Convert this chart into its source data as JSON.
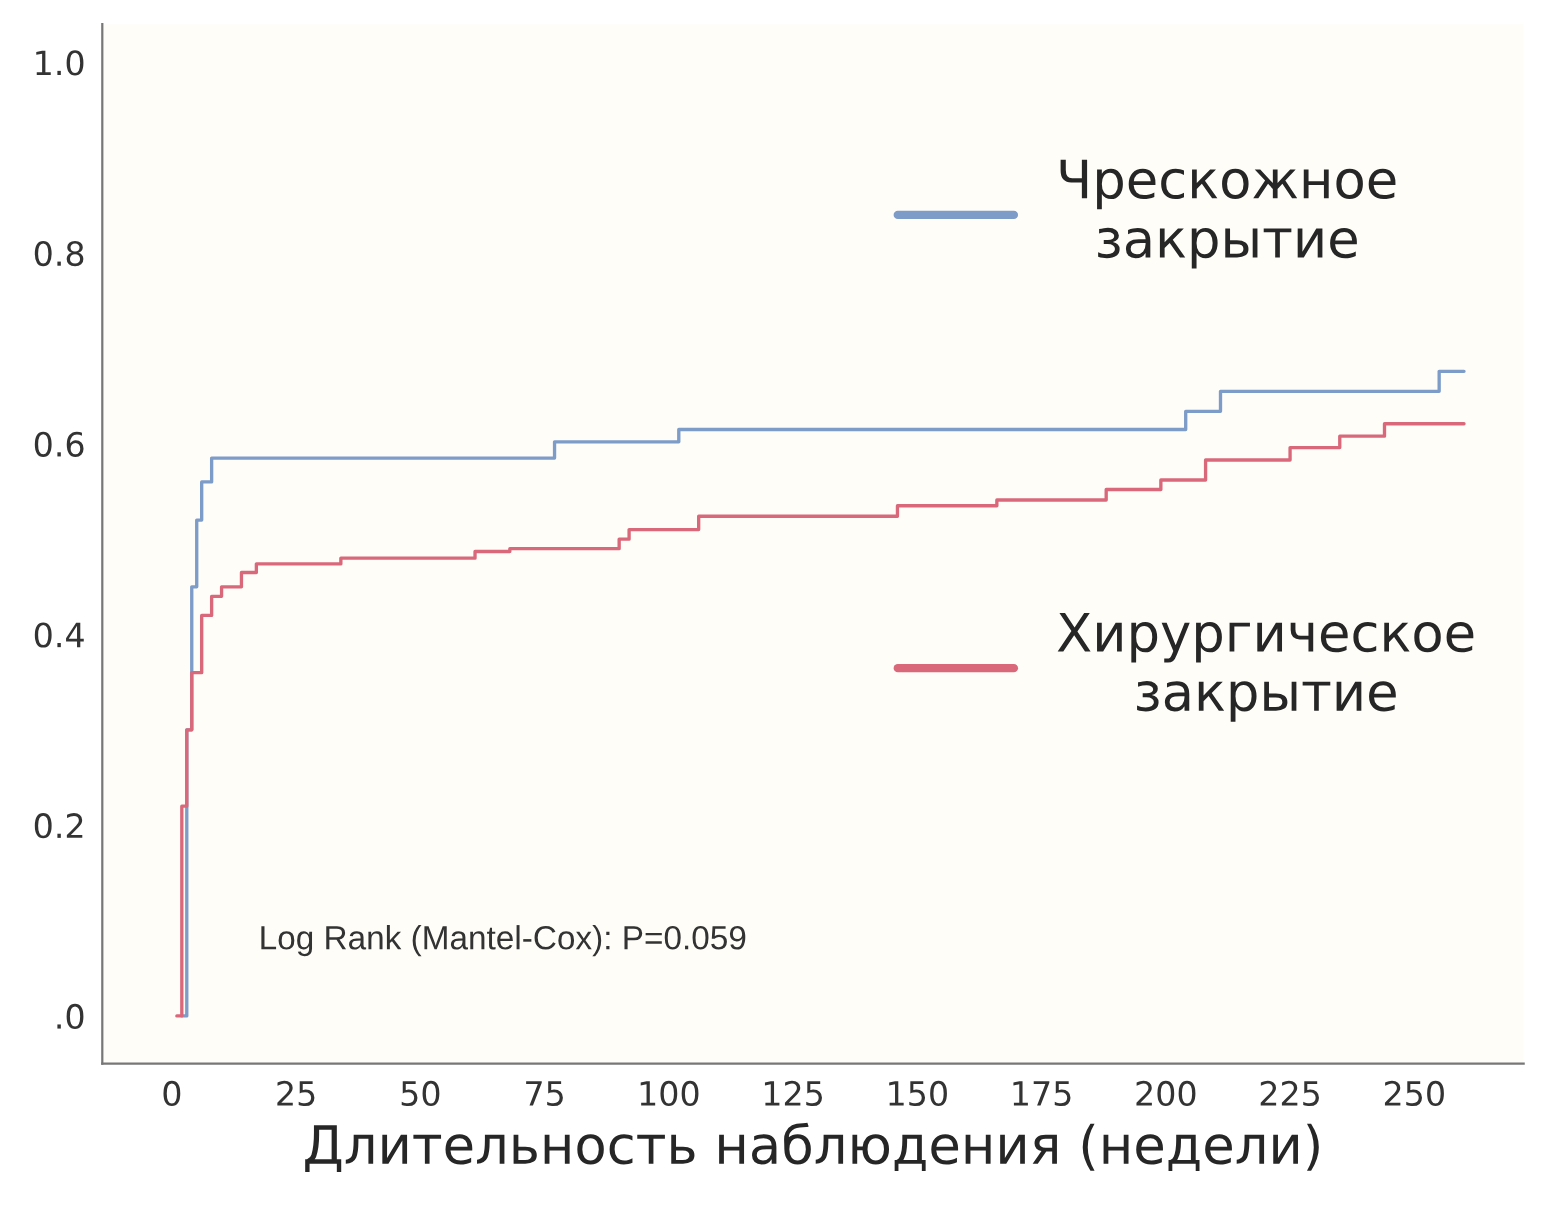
{
  "chart_data": {
    "type": "step",
    "xlabel": "Длительность наблюдения (недели)",
    "xlim": [
      -14,
      272
    ],
    "ylim": [
      -0.05,
      1.04
    ],
    "xticks": [
      0,
      25,
      50,
      75,
      100,
      125,
      150,
      175,
      200,
      225,
      250
    ],
    "yticks": [
      {
        "value": 0,
        "label": ".0"
      },
      {
        "value": 0.2,
        "label": "0.2"
      },
      {
        "value": 0.4,
        "label": "0.4"
      },
      {
        "value": 0.6,
        "label": "0.6"
      },
      {
        "value": 0.8,
        "label": "0.8"
      },
      {
        "value": 1.0,
        "label": "1.0"
      }
    ],
    "grid": false,
    "legend": "right",
    "annotations": [
      "Log Rank (Mantel-Cox): P=0.059"
    ],
    "series": [
      {
        "name": "Чрескожное\nзакрытие",
        "color": "#7d9cc8",
        "x": [
          2,
          3,
          4,
          5,
          6,
          8,
          77,
          102,
          204,
          211,
          255,
          260
        ],
        "values": [
          0.0,
          0.3,
          0.45,
          0.52,
          0.56,
          0.585,
          0.602,
          0.615,
          0.634,
          0.655,
          0.676,
          0.676
        ]
      },
      {
        "name": "Хирургическое\nзакрытие",
        "color": "#d9687a",
        "x": [
          1,
          2,
          3,
          4,
          6,
          8,
          10,
          14,
          17,
          34,
          61,
          68,
          90,
          92,
          106,
          146,
          166,
          188,
          199,
          208,
          225,
          235,
          244,
          260
        ],
        "values": [
          0.0,
          0.22,
          0.3,
          0.36,
          0.42,
          0.44,
          0.45,
          0.465,
          0.474,
          0.48,
          0.487,
          0.49,
          0.5,
          0.51,
          0.524,
          0.535,
          0.541,
          0.552,
          0.562,
          0.583,
          0.596,
          0.608,
          0.621,
          0.621
        ]
      }
    ]
  }
}
